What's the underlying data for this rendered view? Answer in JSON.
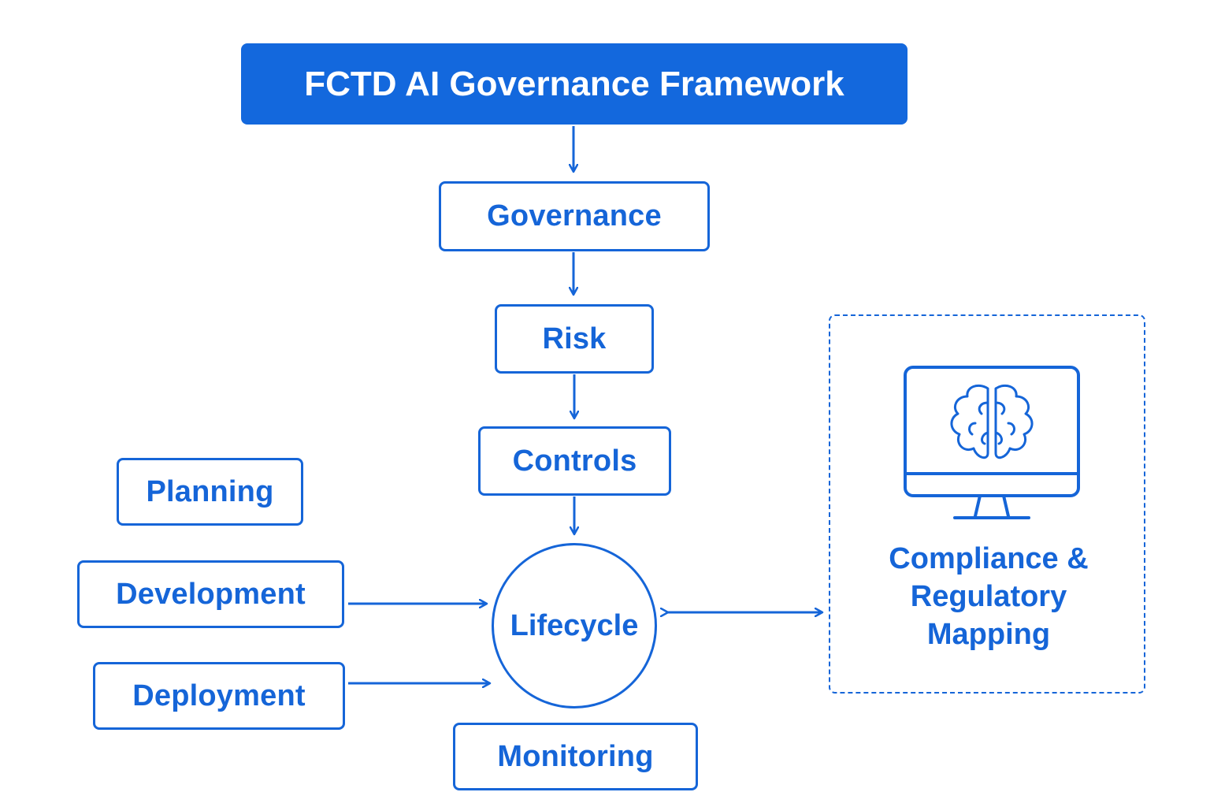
{
  "title": "FCTD AI Governance Framework",
  "flow": {
    "governance": "Governance",
    "risk": "Risk",
    "controls": "Controls",
    "lifecycle": "Lifecycle",
    "monitoring": "Monitoring"
  },
  "lifecycle_stages": {
    "planning": "Planning",
    "development": "Development",
    "deployment": "Deployment"
  },
  "compliance": {
    "line1": "Compliance &",
    "line2": "Regulatory",
    "line3": "Mapping",
    "icon": "monitor-brain-icon"
  },
  "colors": {
    "primary": "#1565d8",
    "title_fill": "#1368dd",
    "background": "#ffffff"
  }
}
